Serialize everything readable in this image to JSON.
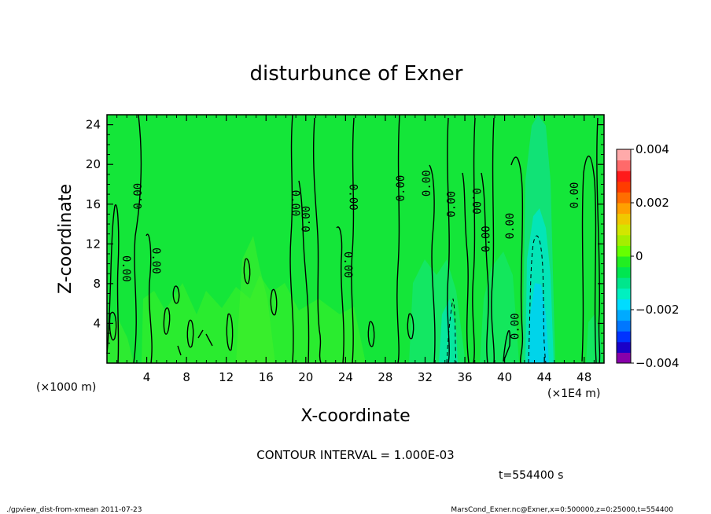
{
  "chart_data": {
    "type": "heatmap",
    "title": "disturbunce of Exner",
    "xlabel": "X-coordinate",
    "ylabel": "Z-coordinate",
    "x_unit_left": "(×1000 m)",
    "x_unit_right": "(×1E4 m)",
    "xlim": [
      0,
      50
    ],
    "ylim": [
      0,
      25
    ],
    "x_ticks": [
      "4",
      "8",
      "12",
      "16",
      "20",
      "24",
      "28",
      "32",
      "36",
      "40",
      "44",
      "48"
    ],
    "y_ticks": [
      "4",
      "8",
      "12",
      "16",
      "20",
      "24"
    ],
    "x_tick_values": [
      4,
      8,
      12,
      16,
      20,
      24,
      28,
      32,
      36,
      40,
      44,
      48
    ],
    "y_tick_values": [
      4,
      8,
      12,
      16,
      20,
      24
    ],
    "contour_label": "0.00",
    "contour_info": "CONTOUR INTERVAL = 1.000E-03",
    "time_label": "t=554400 s",
    "colorbar": {
      "ticks": [
        "0.004",
        "0.002",
        "0",
        "−0.002",
        "−0.004"
      ],
      "tick_values": [
        0.004,
        0.002,
        0,
        -0.002,
        -0.004
      ],
      "min": -0.004,
      "max": 0.004,
      "colors": [
        "#8800aa",
        "#1a00c8",
        "#0033ff",
        "#0077ff",
        "#00aaff",
        "#00dcff",
        "#00f0c0",
        "#00e68c",
        "#00e650",
        "#22ee22",
        "#66ff00",
        "#a5ee00",
        "#d2e600",
        "#f0c800",
        "#ffa000",
        "#ff6e00",
        "#ff3c00",
        "#ff1a1a",
        "#ff6a6a",
        "#ffaaaa"
      ]
    },
    "background_color": "#14e639"
  },
  "footer": {
    "left": "./gpview_dist-from-xmean  2011-07-23",
    "right": "MarsCond_Exner.nc@Exner,x=0:500000,z=0:25000,t=554400"
  }
}
